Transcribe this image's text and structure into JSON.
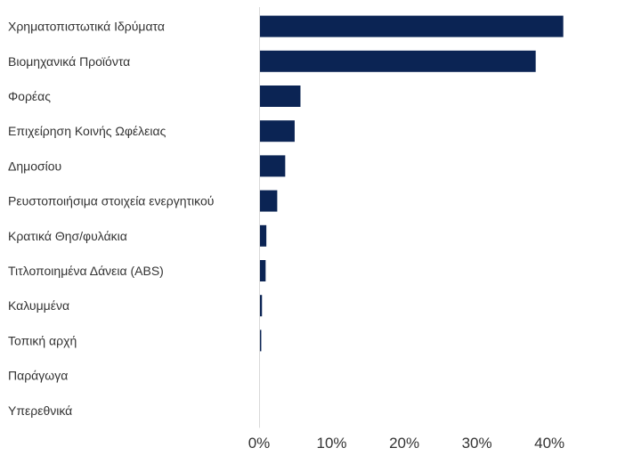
{
  "chart_data": {
    "type": "bar",
    "orientation": "horizontal",
    "categories": [
      "Χρηματοπιστωτικά Ιδρύματα",
      "Βιομηχανικά Προϊόντα",
      "Φορέας",
      "Επιχείρηση Κοινής Ωφέλειας",
      "Δημοσίου",
      "Ρευστοποιήσιμα στοιχεία ενεργητικού",
      "Κρατικά Θησ/φυλάκια",
      "Τιτλοποιημένα Δάνεια (ABS)",
      "Καλυμμένα",
      "Τοπική αρχή",
      "Παράγωγα",
      "Υπερεθνικά"
    ],
    "values": [
      41.9,
      38.1,
      5.7,
      4.9,
      3.6,
      2.5,
      1.0,
      0.9,
      0.4,
      0.3,
      0.0,
      0.0
    ],
    "xlim": [
      0,
      49.3
    ],
    "xticks": [
      {
        "value": 0,
        "label": "0%"
      },
      {
        "value": 10,
        "label": "10%"
      },
      {
        "value": 20,
        "label": "20%"
      },
      {
        "value": 30,
        "label": "30%"
      },
      {
        "value": 40,
        "label": "40%"
      }
    ],
    "bar_color": "#0b2454",
    "axis_color": "#d9d9d9",
    "grid": false,
    "legend": "none"
  }
}
